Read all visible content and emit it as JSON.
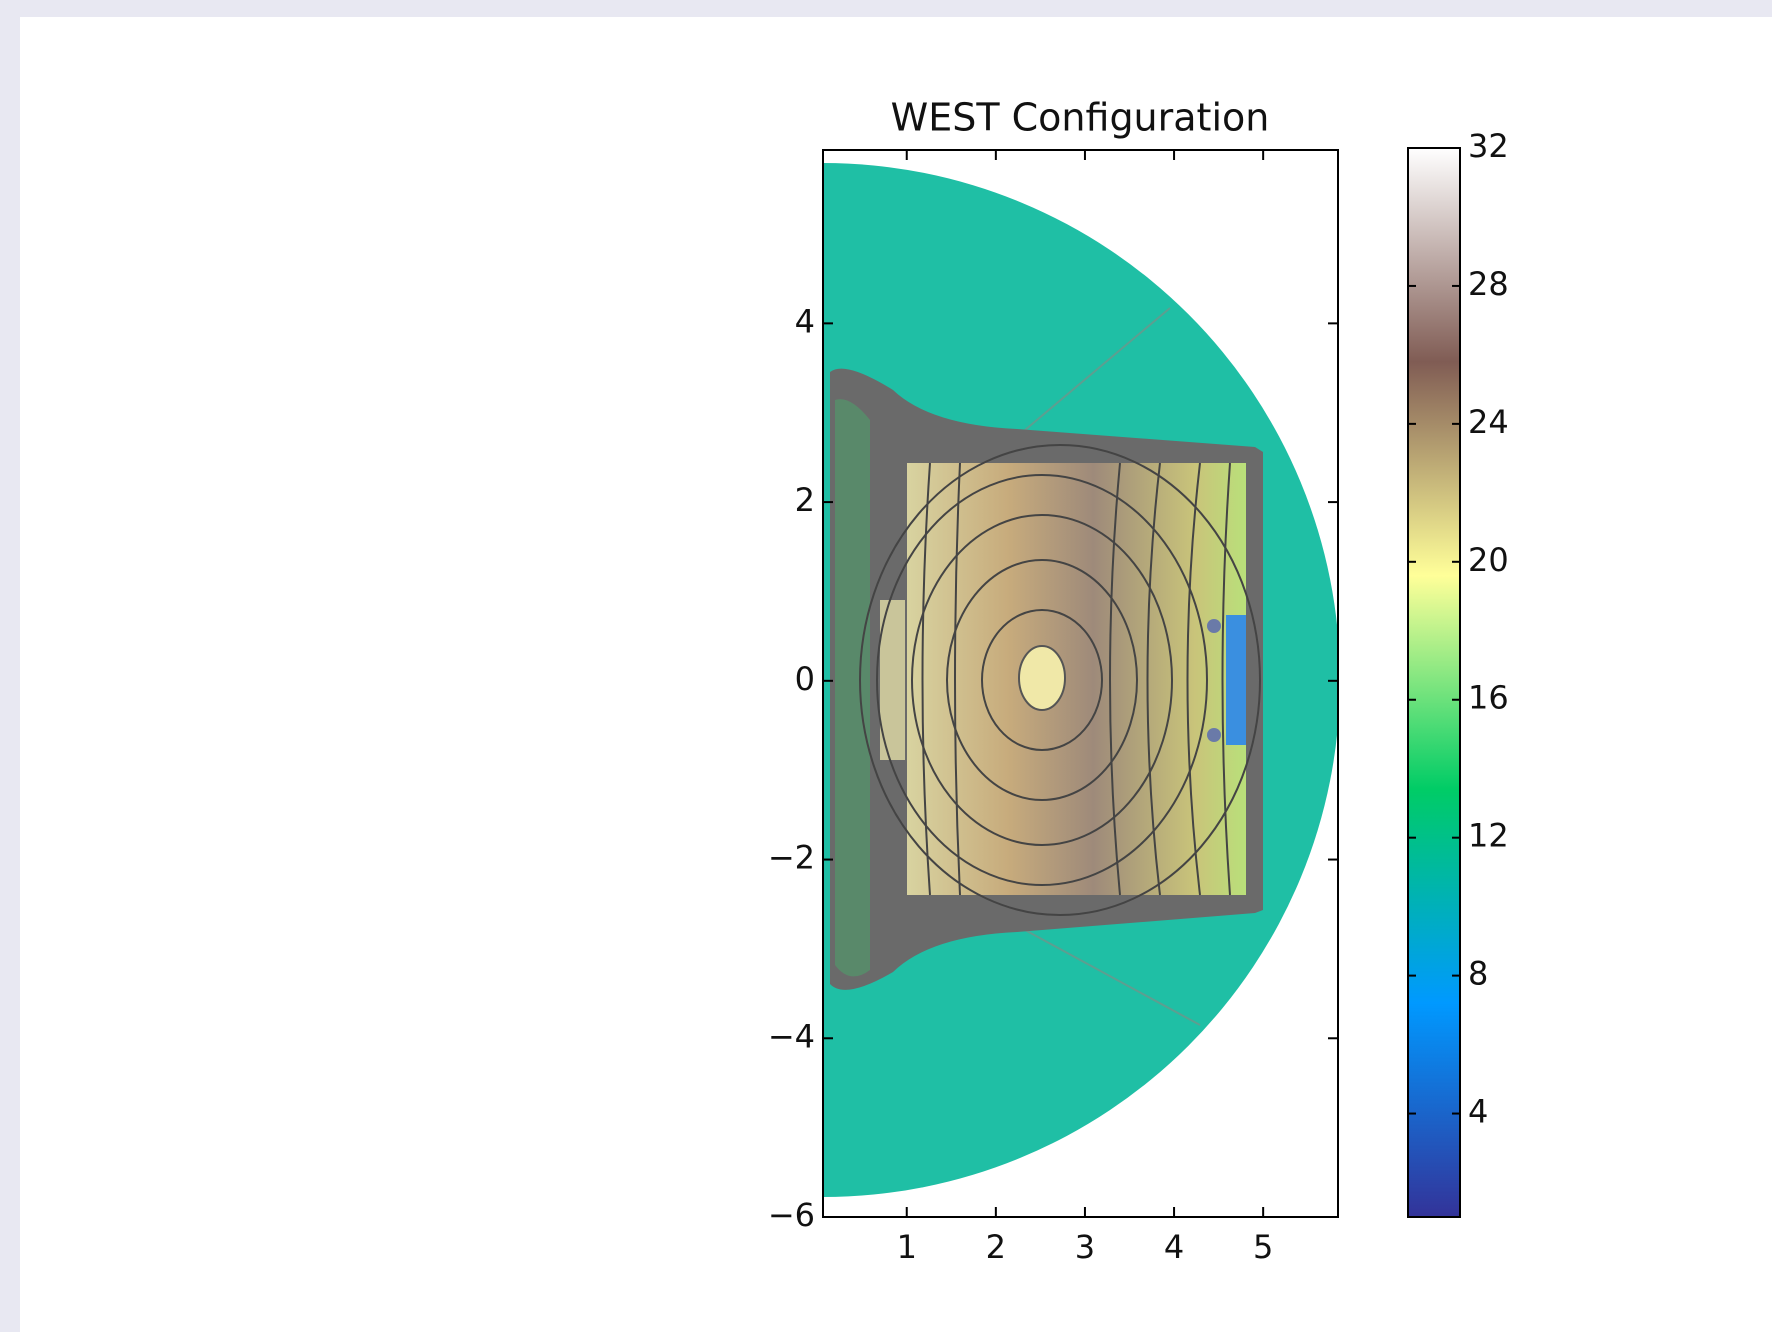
{
  "chart_data": {
    "type": "contour",
    "title": "WEST Configuration",
    "xlim": [
      0.06,
      5.84
    ],
    "ylim": [
      -6,
      5.94
    ],
    "xticks": [
      1,
      2,
      3,
      4,
      5
    ],
    "yticks": [
      {
        "value": -6,
        "label": "−6"
      },
      {
        "value": -4,
        "label": "−4"
      },
      {
        "value": -2,
        "label": "−2"
      },
      0,
      2,
      4
    ],
    "colorbar": {
      "lim": [
        1,
        32
      ],
      "ticks": [
        4,
        8,
        12,
        16,
        20,
        24,
        28,
        32
      ],
      "colormap": [
        "#333399",
        "#0099ff",
        "#00cc66",
        "#ffff99",
        "#805c54",
        "#ffffff"
      ]
    }
  }
}
